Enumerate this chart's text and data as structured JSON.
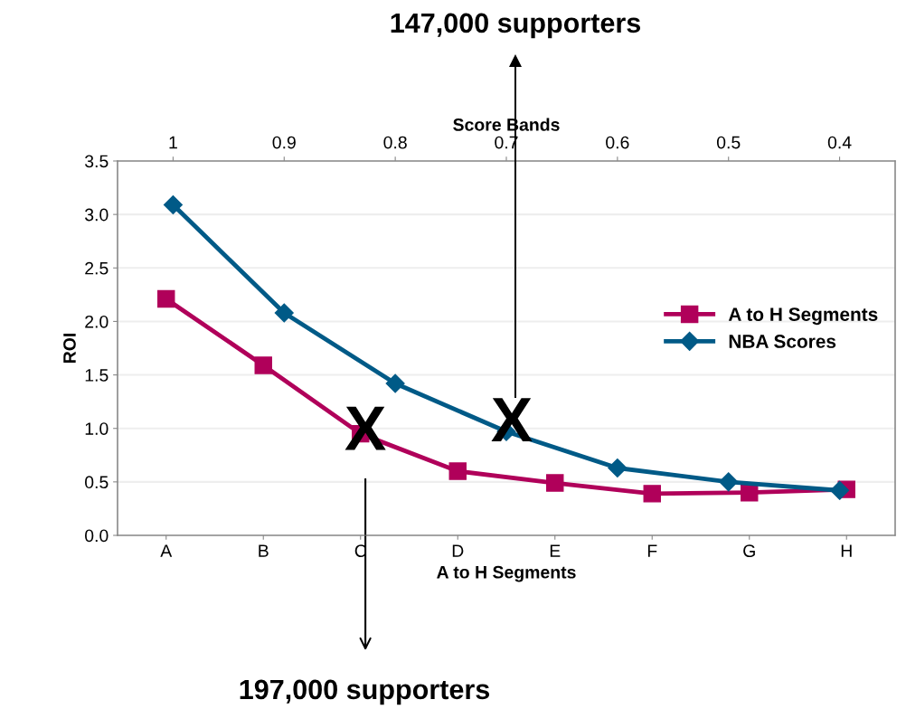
{
  "chart_data": {
    "type": "line",
    "xlabel": "A to H Segments",
    "ylabel": "ROI",
    "x2label": "Score Bands",
    "categories": [
      "A",
      "B",
      "C",
      "D",
      "E",
      "F",
      "G",
      "H"
    ],
    "series": [
      {
        "name": "A to H Segments",
        "color": "#b0005a",
        "marker": "square",
        "values": [
          2.21,
          1.59,
          0.95,
          0.6,
          0.49,
          0.39,
          0.4,
          0.43
        ]
      },
      {
        "name": "NBA Scores",
        "color": "#005a87",
        "marker": "diamond",
        "axis": "x2",
        "x": [
          1,
          0.9,
          0.8,
          0.7,
          0.6,
          0.5,
          0.4
        ],
        "values": [
          3.09,
          2.08,
          1.42,
          0.97,
          0.63,
          0.5,
          0.42
        ]
      }
    ],
    "ylim": [
      0,
      3.5
    ],
    "yticks": [
      {
        "value": 0,
        "label": "0.0"
      },
      {
        "value": 0.5,
        "label": "0.5"
      },
      {
        "value": 1,
        "label": "1.0"
      },
      {
        "value": 1.5,
        "label": "1.5"
      },
      {
        "value": 2,
        "label": "2.0"
      },
      {
        "value": 2.5,
        "label": "2.5"
      },
      {
        "value": 3,
        "label": "3.0"
      },
      {
        "value": 3.5,
        "label": "3.5"
      }
    ],
    "x2lim": [
      1.05,
      0.35
    ],
    "x2ticks": [
      1,
      0.9,
      0.8,
      0.7,
      0.6,
      0.5,
      0.4
    ],
    "grid": "y",
    "legend": "right",
    "annotations": [
      {
        "text": "X",
        "x": "C",
        "y": 0.95
      },
      "X",
      "147,000 supporters",
      "197,000 supporters"
    ]
  }
}
